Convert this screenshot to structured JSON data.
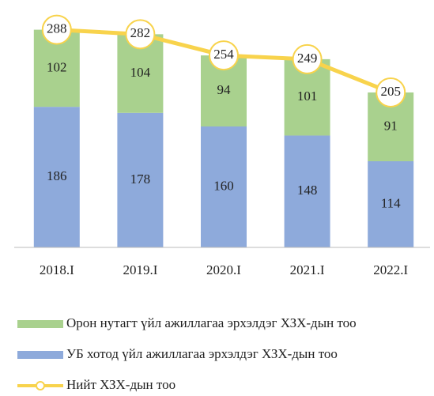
{
  "chart_data": {
    "type": "stacked_bar_line",
    "categories": [
      "2018.I",
      "2019.I",
      "2020.I",
      "2021.I",
      "2022.I"
    ],
    "series": [
      {
        "name": "УБ хотод үйл ажиллагаа эрхэлдэг ХЗХ-дын тоо",
        "color": "#8eaadb",
        "values": [
          186,
          178,
          160,
          148,
          114
        ]
      },
      {
        "name": "Орон нутагт үйл ажиллагаа эрхэлдэг ХЗХ-дын тоо",
        "color": "#a9d18e",
        "values": [
          102,
          104,
          94,
          101,
          91
        ]
      },
      {
        "name": "Нийт ХЗХ-дын тоо",
        "color": "#f8d34c",
        "type": "line",
        "values": [
          288,
          282,
          254,
          249,
          205
        ]
      }
    ],
    "ylim": [
      0,
      320
    ]
  }
}
